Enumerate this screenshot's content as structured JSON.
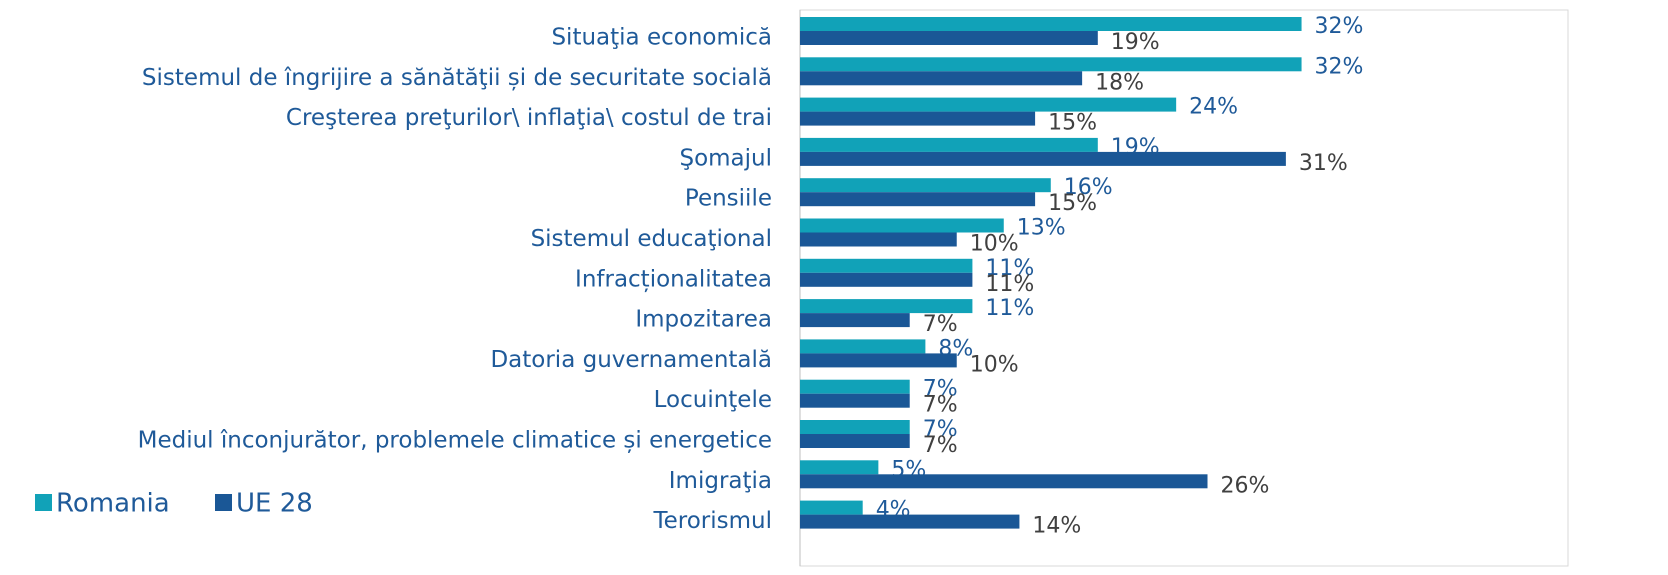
{
  "chart_data": {
    "type": "bar",
    "orientation": "horizontal",
    "categories": [
      "Situaţia economică",
      "Sistemul de îngrijire a sănătăţii și de securitate socială",
      "Creşterea preţurilor\\ inflaţia\\ costul de trai",
      "Şomajul",
      "Pensiile",
      "Sistemul educaţional",
      "Infracționalitatea",
      "Impozitarea",
      "Datoria guvernamentală",
      "Locuinţele",
      "Mediul înconjurător, problemele climatice și energetice",
      "Imigraţia",
      "Terorismul"
    ],
    "series": [
      {
        "name": "Romania",
        "color": "#11a2b8",
        "label_color": "#1f5a99",
        "values": [
          32,
          32,
          24,
          19,
          16,
          13,
          11,
          11,
          8,
          7,
          7,
          5,
          4
        ],
        "value_labels": [
          "32%",
          "32%",
          "24%",
          "19%",
          "16%",
          "13%",
          "11%",
          "11%",
          "8%",
          "7%",
          "7%",
          "5%",
          "4%"
        ]
      },
      {
        "name": "UE 28",
        "color": "#1a5796",
        "label_color": "#404040",
        "values": [
          19,
          18,
          15,
          31,
          15,
          10,
          11,
          7,
          10,
          7,
          7,
          26,
          14
        ],
        "value_labels": [
          "19%",
          "18%",
          "15%",
          "31%",
          "15%",
          "10%",
          "11%",
          "7%",
          "10%",
          "7%",
          "7%",
          "26%",
          "14%"
        ]
      }
    ],
    "xlim": [
      0,
      49
    ],
    "legend": "lower left"
  }
}
